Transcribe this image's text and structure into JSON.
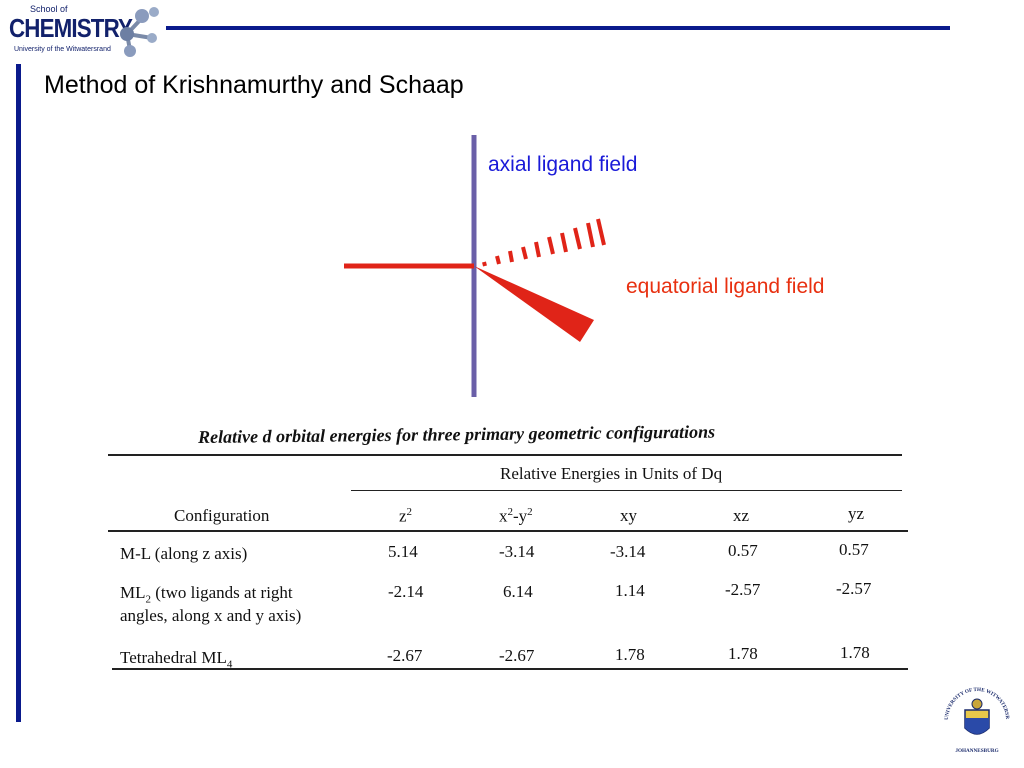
{
  "logo": {
    "school_text": "School of",
    "name_text": "CHEMISTRY",
    "university_text": "University of the Witwatersrand"
  },
  "title": "Method of Krishnamurthy and Schaap",
  "diagram": {
    "axial_label": "axial ligand field",
    "equatorial_label": "equatorial ligand field",
    "colors": {
      "axis": "#6a5fa8",
      "ligand": "#e02418",
      "axial_text": "#1a1ad8",
      "equatorial_text": "#e83010"
    }
  },
  "table": {
    "caption": "Relative d orbital energies for three primary geometric configurations",
    "group_header": "Relative Energies in Units of Dq",
    "config_header": "Configuration",
    "columns": [
      {
        "main": "z",
        "sup": "2",
        "tail": ""
      },
      {
        "main": "x",
        "sup": "2",
        "tail": "-y",
        "sup2": "2"
      },
      {
        "main": "xy"
      },
      {
        "main": "xz"
      },
      {
        "main": "yz"
      }
    ],
    "rows": [
      {
        "config_line1": "M-L (along z axis)",
        "config_line2": "",
        "sub": "",
        "values": [
          "5.14",
          "-3.14",
          "-3.14",
          "0.57",
          "0.57"
        ]
      },
      {
        "config_line1_pre": "ML",
        "sub": "2",
        "config_line1_post": " (two ligands at right",
        "config_line2": "angles, along x and y axis)",
        "values": [
          "-2.14",
          "6.14",
          "1.14",
          "-2.57",
          "-2.57"
        ]
      },
      {
        "config_line1_pre": "Tetrahedral ML",
        "sub": "4",
        "config_line1_post": "",
        "config_line2": "",
        "values": [
          "-2.67",
          "-2.67",
          "1.78",
          "1.78",
          "1.78"
        ]
      }
    ]
  },
  "seal": {
    "top_text": "UNIVERSITY OF THE WITWATERSRAND",
    "bottom_text": "JOHANNESBURG"
  }
}
